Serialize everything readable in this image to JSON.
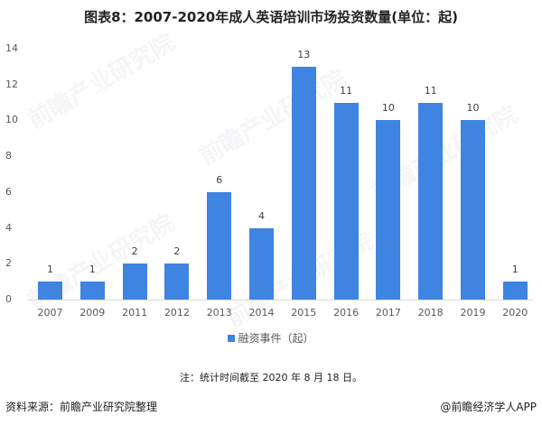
{
  "title": "图表8：2007-2020年成人英语培训市场投资数量(单位：起)",
  "chart_data": {
    "type": "bar",
    "title": "图表8：2007-2020年成人英语培训市场投资数量(单位：起)",
    "categories": [
      "2007",
      "2009",
      "2011",
      "2012",
      "2013",
      "2014",
      "2015",
      "2016",
      "2017",
      "2018",
      "2019",
      "2020"
    ],
    "series": [
      {
        "name": "融资事件（起）",
        "values": [
          1,
          1,
          2,
          2,
          6,
          4,
          13,
          11,
          10,
          11,
          10,
          1
        ],
        "color": "#3f84e0"
      }
    ],
    "xlabel": "",
    "ylabel": "",
    "ylim": [
      0,
      14
    ],
    "yticks": [
      0,
      2,
      4,
      6,
      8,
      10,
      12,
      14
    ],
    "grid": false,
    "data_labels": true,
    "legend_position": "bottom"
  },
  "yticks": [
    "14",
    "12",
    "10",
    "8",
    "6",
    "4",
    "2",
    "0"
  ],
  "legend": {
    "label": "融资事件（起）"
  },
  "note": "注：统计时间截至 2020 年 8 月 18 日。",
  "source": "资料来源：前瞻产业研究院整理",
  "brand": "@前瞻经济学人APP",
  "watermark": "前瞻产业研究院"
}
